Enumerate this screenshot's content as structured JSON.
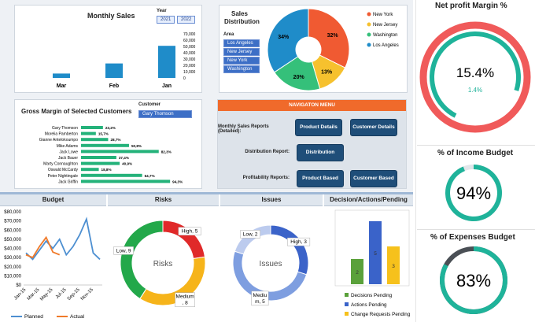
{
  "monthly_sales": {
    "title": "Monthly Sales",
    "year_label": "Year",
    "years": [
      "2021",
      "2022"
    ],
    "y_ticks": [
      "70,000",
      "60,000",
      "50,000",
      "40,000",
      "30,000",
      "20,000",
      "10,000",
      "0"
    ],
    "chart_data": {
      "type": "bar",
      "categories": [
        "Mar",
        "Feb",
        "Jan"
      ],
      "values": [
        7000,
        23000,
        51000
      ],
      "ylim": [
        0,
        70000
      ],
      "title": "Monthly Sales"
    }
  },
  "sales_distribution": {
    "title_line1": "Sales",
    "title_line2": "Distribution",
    "area_label": "Area",
    "areas": [
      "Los Angeles",
      "New Jersey",
      "New York",
      "Washington"
    ],
    "legend": [
      "New York",
      "New Jersey",
      "Washington",
      "Los Angeles"
    ],
    "colors": [
      "#f05a32",
      "#f6c12e",
      "#35c07a",
      "#1f8cc9"
    ],
    "chart_data": {
      "type": "pie",
      "labels": [
        "New York",
        "New Jersey",
        "Washington",
        "Los Angeles"
      ],
      "values": [
        32,
        13,
        20,
        34
      ],
      "data_labels": [
        "32%",
        "13%",
        "20%",
        "34%"
      ]
    }
  },
  "gross_margin": {
    "title": "Gross Margin of Selected Customers",
    "customer_label": "Customer",
    "customer_selected": "Gary Thomson",
    "chart_data": {
      "type": "bar",
      "orientation": "horizontal",
      "categories": [
        "Gary Thomson",
        "Morelia Pamberton",
        "Gianne Antelokoumpo",
        "Mike Adams",
        "Jack Lowe",
        "Jack Bauer",
        "Marty Connaughton",
        "Oswald McCardy",
        "Peter Nightingale",
        "Jack Griffin"
      ],
      "values": [
        23.2,
        15.7,
        28.7,
        50.8,
        82.3,
        37.4,
        40.9,
        18.8,
        64.7,
        94.3
      ],
      "data_labels": [
        "23,2%",
        "15,7%",
        "28,7%",
        "50,8%",
        "82,3%",
        "37,4%",
        "40,9%",
        "18,8%",
        "64,7%",
        "94,3%"
      ]
    }
  },
  "nav_menu": {
    "header": "NAVIGATON MENU",
    "rows": [
      {
        "label": "Monthly Sales Reports (Detailed):",
        "buttons": [
          "Product Details",
          "Customer Details"
        ]
      },
      {
        "label": "Distribution Report:",
        "buttons": [
          "Distribution"
        ]
      },
      {
        "label": "Profitability Reports:",
        "buttons": [
          "Product Based",
          "Customer Based"
        ]
      }
    ]
  },
  "net_profit": {
    "title": "Net profit Margin %",
    "value": "15.4%",
    "sub": "1.4%",
    "fraction": 0.154
  },
  "income_budget": {
    "title": "% of Income Budget",
    "value": "94%",
    "fraction": 0.94
  },
  "expenses_budget": {
    "title": "% of Expenses Budget",
    "value": "83%",
    "fraction": 0.83
  },
  "budget": {
    "header": "Budget",
    "y_ticks": [
      "$80,000",
      "$70,000",
      "$60,000",
      "$50,000",
      "$40,000",
      "$30,000",
      "$20,000",
      "$10,000",
      "$0"
    ],
    "x_ticks": [
      "Jan-15",
      "Mar-15",
      "May-15",
      "Jul-15",
      "Sep-15",
      "Nov-15"
    ],
    "legend": [
      "Planned",
      "Actual"
    ],
    "chart_data": {
      "type": "line",
      "x": [
        "Jan-15",
        "Feb-15",
        "Mar-15",
        "Apr-15",
        "May-15",
        "Jun-15",
        "Jul-15",
        "Aug-15",
        "Sep-15",
        "Oct-15",
        "Nov-15",
        "Dec-15"
      ],
      "series": [
        {
          "name": "Planned",
          "values": [
            35000,
            28000,
            38000,
            48000,
            40000,
            50000,
            33000,
            42000,
            55000,
            72000,
            35000,
            28000
          ]
        },
        {
          "name": "Actual",
          "values": [
            33000,
            30000,
            42000,
            52000,
            36000,
            33000,
            null,
            null,
            null,
            null,
            null,
            null
          ]
        }
      ],
      "ylim": [
        0,
        80000
      ]
    }
  },
  "risks": {
    "header": "Risks",
    "center": "Risks",
    "chart_data": {
      "type": "pie",
      "labels": [
        "High",
        "Medium",
        "Low"
      ],
      "values": [
        5,
        8,
        9
      ],
      "data_labels": [
        "High, 5",
        "Medium\n, 8",
        "Low, 9"
      ]
    }
  },
  "issues": {
    "header": "Issues",
    "center": "Issues",
    "chart_data": {
      "type": "pie",
      "labels": [
        "High",
        "Medium",
        "Low"
      ],
      "values": [
        3,
        5,
        2
      ],
      "data_labels": [
        "High, 3",
        "Mediu\nm, 5",
        "Low, 2"
      ]
    }
  },
  "decisions": {
    "header": "Decision/Actions/Pending",
    "legend": [
      "Decisions Pending",
      "Actions Pending",
      "Change Requests Pending"
    ],
    "chart_data": {
      "type": "bar",
      "categories": [
        "Decisions Pending",
        "Actions Pending",
        "Change Requests Pending"
      ],
      "values": [
        2,
        5,
        3
      ]
    }
  }
}
